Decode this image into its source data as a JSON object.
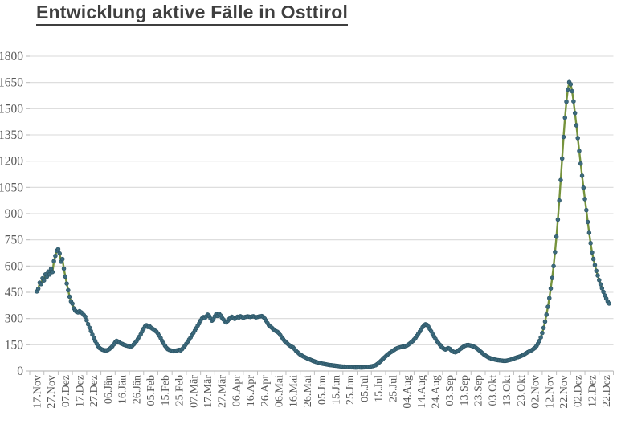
{
  "title": {
    "text": "Entwicklung aktive Fälle in Osttirol",
    "color": "#3f3f3f",
    "underlined": true
  },
  "chart_data": {
    "type": "line",
    "title": "Entwicklung aktive Fälle in Osttirol",
    "series_name": "aktive Fälle",
    "xlabel": "",
    "ylabel": "",
    "ylim": [
      0,
      1800
    ],
    "y_ticks": [
      0,
      150,
      300,
      450,
      600,
      750,
      900,
      1050,
      1200,
      1350,
      1500,
      1650,
      1800
    ],
    "x_tick_labels": [
      "17.Nov",
      "27.Nov",
      "07.Dez",
      "17.Dez",
      "27.Dez",
      "06.Jän",
      "16.Jän",
      "26.Jän",
      "05.Feb",
      "15.Feb",
      "25.Feb",
      "07.Mär",
      "17.Mär",
      "27.Mär",
      "06.Apr",
      "16.Apr",
      "26.Apr",
      "06.Mai",
      "16.Mai",
      "26.Mai",
      "05.Jun",
      "15.Jun",
      "25.Jun",
      "05.Jul",
      "15.Jul",
      "25.Jul",
      "04.Aug",
      "14.Aug",
      "24.Aug",
      "03.Sep",
      "13.Sep",
      "23.Sep",
      "03.Okt",
      "13.Okt",
      "23.Okt",
      "02.Nov",
      "12.Nov",
      "22.Nov",
      "02.Dez",
      "12.Dez",
      "22.Dez"
    ],
    "days_per_label": 10,
    "grid": "horizontal-only",
    "legend_position": "none",
    "line_color": "#76933C",
    "marker_color": "#3C6A7D",
    "marker_edge_color": "#2B5363",
    "gridline_color": "#D9D9D9",
    "axis_color": "#BFBFBF",
    "tick_label_color": "#595959",
    "points_day_value": [
      [
        0,
        455
      ],
      [
        1,
        470
      ],
      [
        2,
        505
      ],
      [
        3,
        497
      ],
      [
        4,
        530
      ],
      [
        5,
        518
      ],
      [
        6,
        552
      ],
      [
        7,
        538
      ],
      [
        8,
        568
      ],
      [
        9,
        552
      ],
      [
        10,
        585
      ],
      [
        11,
        566
      ],
      [
        12,
        628
      ],
      [
        13,
        658
      ],
      [
        14,
        688
      ],
      [
        15,
        697
      ],
      [
        16,
        672
      ],
      [
        17,
        625
      ],
      [
        18,
        640
      ],
      [
        19,
        585
      ],
      [
        20,
        540
      ],
      [
        21,
        500
      ],
      [
        22,
        462
      ],
      [
        23,
        425
      ],
      [
        24,
        398
      ],
      [
        25,
        385
      ],
      [
        26,
        358
      ],
      [
        27,
        345
      ],
      [
        28,
        338
      ],
      [
        29,
        335
      ],
      [
        30,
        342
      ],
      [
        31,
        336
      ],
      [
        32,
        330
      ],
      [
        33,
        320
      ],
      [
        34,
        310
      ],
      [
        35,
        290
      ],
      [
        36,
        268
      ],
      [
        37,
        248
      ],
      [
        38,
        228
      ],
      [
        39,
        208
      ],
      [
        40,
        190
      ],
      [
        41,
        172
      ],
      [
        42,
        156
      ],
      [
        43,
        142
      ],
      [
        44,
        132
      ],
      [
        45,
        126
      ],
      [
        46,
        122
      ],
      [
        47,
        119
      ],
      [
        48,
        118
      ],
      [
        49,
        118
      ],
      [
        50,
        121
      ],
      [
        51,
        126
      ],
      [
        52,
        133
      ],
      [
        53,
        141
      ],
      [
        54,
        152
      ],
      [
        55,
        163
      ],
      [
        56,
        172
      ],
      [
        57,
        168
      ],
      [
        58,
        163
      ],
      [
        59,
        158
      ],
      [
        60,
        155
      ],
      [
        61,
        151
      ],
      [
        62,
        148
      ],
      [
        63,
        145
      ],
      [
        64,
        143
      ],
      [
        65,
        141
      ],
      [
        66,
        139
      ],
      [
        67,
        144
      ],
      [
        68,
        152
      ],
      [
        69,
        161
      ],
      [
        70,
        171
      ],
      [
        71,
        183
      ],
      [
        72,
        196
      ],
      [
        73,
        210
      ],
      [
        74,
        226
      ],
      [
        75,
        242
      ],
      [
        76,
        255
      ],
      [
        77,
        262
      ],
      [
        78,
        252
      ],
      [
        79,
        258
      ],
      [
        80,
        249
      ],
      [
        81,
        243
      ],
      [
        82,
        238
      ],
      [
        83,
        231
      ],
      [
        84,
        225
      ],
      [
        85,
        215
      ],
      [
        86,
        202
      ],
      [
        87,
        188
      ],
      [
        88,
        172
      ],
      [
        89,
        158
      ],
      [
        90,
        145
      ],
      [
        91,
        133
      ],
      [
        92,
        125
      ],
      [
        93,
        121
      ],
      [
        94,
        118
      ],
      [
        95,
        115
      ],
      [
        96,
        113
      ],
      [
        97,
        114
      ],
      [
        98,
        117
      ],
      [
        99,
        119
      ],
      [
        100,
        121
      ],
      [
        101,
        118
      ],
      [
        102,
        125
      ],
      [
        103,
        134
      ],
      [
        104,
        145
      ],
      [
        105,
        156
      ],
      [
        106,
        168
      ],
      [
        107,
        180
      ],
      [
        108,
        192
      ],
      [
        109,
        205
      ],
      [
        110,
        218
      ],
      [
        111,
        231
      ],
      [
        112,
        245
      ],
      [
        113,
        259
      ],
      [
        114,
        272
      ],
      [
        115,
        288
      ],
      [
        116,
        300
      ],
      [
        117,
        308
      ],
      [
        118,
        302
      ],
      [
        119,
        312
      ],
      [
        120,
        322
      ],
      [
        121,
        315
      ],
      [
        122,
        300
      ],
      [
        123,
        288
      ],
      [
        124,
        295
      ],
      [
        125,
        312
      ],
      [
        126,
        325
      ],
      [
        127,
        315
      ],
      [
        128,
        328
      ],
      [
        129,
        318
      ],
      [
        130,
        305
      ],
      [
        131,
        295
      ],
      [
        132,
        284
      ],
      [
        133,
        278
      ],
      [
        134,
        286
      ],
      [
        135,
        296
      ],
      [
        136,
        305
      ],
      [
        137,
        310
      ],
      [
        138,
        304
      ],
      [
        139,
        298
      ],
      [
        140,
        305
      ],
      [
        141,
        310
      ],
      [
        142,
        306
      ],
      [
        143,
        313
      ],
      [
        144,
        309
      ],
      [
        145,
        304
      ],
      [
        146,
        308
      ],
      [
        148,
        312
      ],
      [
        150,
        309
      ],
      [
        152,
        313
      ],
      [
        154,
        307
      ],
      [
        156,
        311
      ],
      [
        158,
        314
      ],
      [
        159,
        309
      ],
      [
        160,
        300
      ],
      [
        161,
        288
      ],
      [
        162,
        274
      ],
      [
        163,
        262
      ],
      [
        164,
        254
      ],
      [
        165,
        248
      ],
      [
        166,
        240
      ],
      [
        167,
        233
      ],
      [
        168,
        228
      ],
      [
        169,
        224
      ],
      [
        170,
        217
      ],
      [
        171,
        205
      ],
      [
        172,
        193
      ],
      [
        173,
        182
      ],
      [
        174,
        172
      ],
      [
        175,
        164
      ],
      [
        176,
        157
      ],
      [
        177,
        150
      ],
      [
        178,
        144
      ],
      [
        179,
        139
      ],
      [
        180,
        135
      ],
      [
        181,
        126
      ],
      [
        182,
        116
      ],
      [
        183,
        108
      ],
      [
        184,
        101
      ],
      [
        185,
        94
      ],
      [
        186,
        89
      ],
      [
        187,
        84
      ],
      [
        188,
        80
      ],
      [
        189,
        76
      ],
      [
        190,
        72
      ],
      [
        192,
        65
      ],
      [
        194,
        58
      ],
      [
        196,
        52
      ],
      [
        198,
        47
      ],
      [
        200,
        43
      ],
      [
        202,
        40
      ],
      [
        204,
        37
      ],
      [
        206,
        34
      ],
      [
        208,
        32
      ],
      [
        210,
        30
      ],
      [
        212,
        28
      ],
      [
        214,
        26
      ],
      [
        216,
        25
      ],
      [
        218,
        23
      ],
      [
        220,
        22
      ],
      [
        222,
        21
      ],
      [
        224,
        20
      ],
      [
        226,
        21
      ],
      [
        228,
        20
      ],
      [
        230,
        21
      ],
      [
        232,
        23
      ],
      [
        234,
        25
      ],
      [
        236,
        28
      ],
      [
        238,
        33
      ],
      [
        240,
        45
      ],
      [
        242,
        60
      ],
      [
        244,
        76
      ],
      [
        246,
        91
      ],
      [
        248,
        104
      ],
      [
        250,
        115
      ],
      [
        252,
        126
      ],
      [
        254,
        133
      ],
      [
        256,
        137
      ],
      [
        258,
        140
      ],
      [
        260,
        146
      ],
      [
        262,
        157
      ],
      [
        264,
        171
      ],
      [
        266,
        189
      ],
      [
        268,
        213
      ],
      [
        270,
        238
      ],
      [
        271,
        251
      ],
      [
        272,
        261
      ],
      [
        273,
        267
      ],
      [
        274,
        264
      ],
      [
        275,
        254
      ],
      [
        276,
        241
      ],
      [
        277,
        227
      ],
      [
        278,
        211
      ],
      [
        279,
        197
      ],
      [
        280,
        184
      ],
      [
        281,
        171
      ],
      [
        282,
        161
      ],
      [
        283,
        151
      ],
      [
        284,
        141
      ],
      [
        285,
        133
      ],
      [
        286,
        127
      ],
      [
        287,
        123
      ],
      [
        288,
        127
      ],
      [
        289,
        131
      ],
      [
        290,
        127
      ],
      [
        291,
        119
      ],
      [
        292,
        113
      ],
      [
        293,
        109
      ],
      [
        294,
        107
      ],
      [
        295,
        111
      ],
      [
        296,
        117
      ],
      [
        297,
        123
      ],
      [
        298,
        129
      ],
      [
        299,
        135
      ],
      [
        300,
        141
      ],
      [
        301,
        145
      ],
      [
        302,
        148
      ],
      [
        303,
        149
      ],
      [
        304,
        147
      ],
      [
        305,
        145
      ],
      [
        306,
        142
      ],
      [
        307,
        139
      ],
      [
        308,
        135
      ],
      [
        309,
        129
      ],
      [
        310,
        123
      ],
      [
        311,
        116
      ],
      [
        312,
        109
      ],
      [
        313,
        102
      ],
      [
        314,
        95
      ],
      [
        315,
        89
      ],
      [
        316,
        84
      ],
      [
        317,
        79
      ],
      [
        318,
        75
      ],
      [
        319,
        72
      ],
      [
        320,
        69
      ],
      [
        321,
        67
      ],
      [
        322,
        65
      ],
      [
        323,
        63
      ],
      [
        324,
        62
      ],
      [
        325,
        61
      ],
      [
        326,
        60
      ],
      [
        327,
        59
      ],
      [
        328,
        58
      ],
      [
        329,
        58
      ],
      [
        330,
        59
      ],
      [
        331,
        61
      ],
      [
        332,
        63
      ],
      [
        333,
        65
      ],
      [
        334,
        68
      ],
      [
        335,
        71
      ],
      [
        336,
        74
      ],
      [
        337,
        77
      ],
      [
        338,
        79
      ],
      [
        339,
        82
      ],
      [
        340,
        85
      ],
      [
        341,
        89
      ],
      [
        342,
        93
      ],
      [
        343,
        98
      ],
      [
        344,
        103
      ],
      [
        345,
        108
      ],
      [
        346,
        112
      ],
      [
        347,
        116
      ],
      [
        348,
        121
      ],
      [
        349,
        127
      ],
      [
        350,
        133
      ],
      [
        351,
        143
      ],
      [
        352,
        156
      ],
      [
        353,
        172
      ],
      [
        354,
        192
      ],
      [
        355,
        217
      ],
      [
        356,
        247
      ],
      [
        357,
        282
      ],
      [
        358,
        322
      ],
      [
        359,
        367
      ],
      [
        360,
        417
      ],
      [
        361,
        472
      ],
      [
        362,
        532
      ],
      [
        363,
        600
      ],
      [
        364,
        680
      ],
      [
        365,
        768
      ],
      [
        366,
        866
      ],
      [
        367,
        975
      ],
      [
        368,
        1092
      ],
      [
        369,
        1215
      ],
      [
        370,
        1338
      ],
      [
        371,
        1448
      ],
      [
        372,
        1540
      ],
      [
        373,
        1610
      ],
      [
        374,
        1652
      ],
      [
        375,
        1640
      ],
      [
        376,
        1600
      ],
      [
        377,
        1542
      ],
      [
        378,
        1475
      ],
      [
        379,
        1405
      ],
      [
        380,
        1332
      ],
      [
        381,
        1258
      ],
      [
        382,
        1186
      ],
      [
        383,
        1116
      ],
      [
        384,
        1048
      ],
      [
        385,
        983
      ],
      [
        386,
        920
      ],
      [
        387,
        852
      ],
      [
        388,
        790
      ],
      [
        389,
        731
      ],
      [
        390,
        678
      ],
      [
        391,
        640
      ],
      [
        392,
        606
      ],
      [
        393,
        573
      ],
      [
        394,
        546
      ],
      [
        395,
        520
      ],
      [
        396,
        496
      ],
      [
        397,
        473
      ],
      [
        398,
        452
      ],
      [
        399,
        432
      ],
      [
        400,
        414
      ],
      [
        401,
        398
      ],
      [
        402,
        386
      ]
    ]
  }
}
